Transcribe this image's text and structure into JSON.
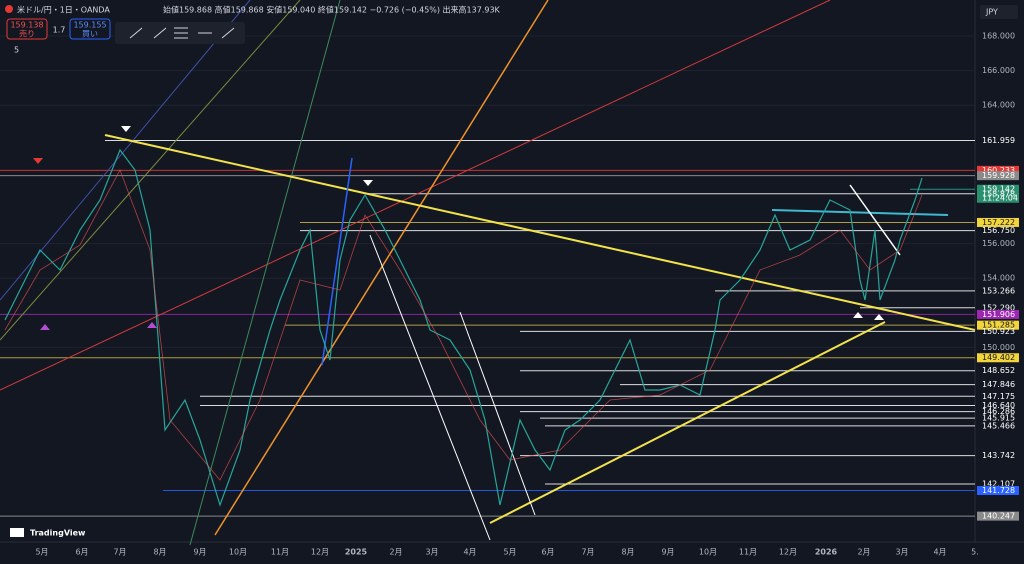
{
  "header": {
    "symbol": "米ドル/円・1日・OANDA",
    "ohlc": "始値159.868 高値159.868 安値159.040 終値159.142 −0.726 (−0.45%) 出来高137.93K",
    "sell_price": "159.138",
    "sell_label": "売り",
    "spread": "1.7",
    "buy_price": "159.155",
    "buy_label": "買い",
    "indicator_count": "5",
    "currency": "JPY"
  },
  "logo": "TradingView",
  "price_axis": {
    "grid_labels": [
      "168.000",
      "166.000",
      "164.000",
      "156.000",
      "154.000",
      "150.000"
    ],
    "levels": [
      {
        "label": "161.959",
        "color": "#ffffff",
        "bg": ""
      },
      {
        "label": "160.233",
        "color": "#e53935",
        "bg": "#e53935"
      },
      {
        "label": "159.928",
        "color": "#9e9e9e",
        "bg": "#8a8a8a"
      },
      {
        "label": "159.142",
        "color": "#26a69a",
        "bg": "#2a8f6e",
        "sub": "11:24:04"
      },
      {
        "label": "158.878",
        "color": "#ffffff",
        "bg": ""
      },
      {
        "label": "157.222",
        "color": "#c9b44a",
        "bg": "#f2d43b"
      },
      {
        "label": "156.750",
        "color": "#ffffff",
        "bg": ""
      },
      {
        "label": "153.266",
        "color": "#ffffff",
        "bg": ""
      },
      {
        "label": "152.290",
        "color": "#ffffff",
        "bg": ""
      },
      {
        "label": "151.906",
        "color": "#9c27b0",
        "bg": "#9c27b0"
      },
      {
        "label": "151.285",
        "color": "#c9b44a",
        "bg": "#f2d43b"
      },
      {
        "label": "150.923",
        "color": "#ffffff",
        "bg": ""
      },
      {
        "label": "149.402",
        "color": "#c9b44a",
        "bg": "#f2d43b"
      },
      {
        "label": "148.652",
        "color": "#ffffff",
        "bg": ""
      },
      {
        "label": "147.846",
        "color": "#ffffff",
        "bg": ""
      },
      {
        "label": "147.175",
        "color": "#ffffff",
        "bg": ""
      },
      {
        "label": "146.640",
        "color": "#ffffff",
        "bg": ""
      },
      {
        "label": "146.286",
        "color": "#ffffff",
        "bg": ""
      },
      {
        "label": "145.915",
        "color": "#ffffff",
        "bg": ""
      },
      {
        "label": "145.466",
        "color": "#ffffff",
        "bg": ""
      },
      {
        "label": "143.742",
        "color": "#ffffff",
        "bg": ""
      },
      {
        "label": "142.107",
        "color": "#ffffff",
        "bg": ""
      },
      {
        "label": "141.728",
        "color": "#2962ff",
        "bg": "#2962ff"
      },
      {
        "label": "140.247",
        "color": "#9e9e9e",
        "bg": "#8a8a8a"
      }
    ]
  },
  "time_axis": [
    "5月",
    "6月",
    "7月",
    "8月",
    "9月",
    "10月",
    "11月",
    "12月",
    "2025",
    "2月",
    "3月",
    "4月",
    "5月",
    "6月",
    "7月",
    "8月",
    "9月",
    "10月",
    "11月",
    "12月",
    "2026",
    "2月",
    "3月",
    "4月",
    "5."
  ]
}
